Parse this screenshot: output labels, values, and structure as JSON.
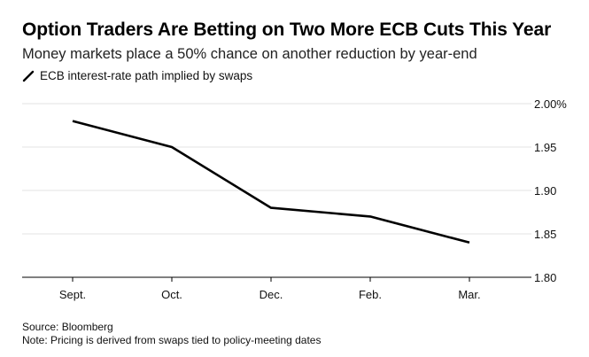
{
  "header": {
    "title": "Option Traders Are Betting on Two More ECB Cuts This Year",
    "subtitle": "Money markets place a 50% chance on another reduction by year-end"
  },
  "legend": {
    "label": "ECB interest-rate path implied by swaps"
  },
  "footer": {
    "source": "Source: Bloomberg",
    "note": "Note: Pricing is derived from swaps tied to policy-meeting dates"
  },
  "colors": {
    "line": "#000000",
    "grid": "#e3e3e3",
    "axis": "#000000"
  },
  "chart_data": {
    "type": "line",
    "title": "Option Traders Are Betting on Two More ECB Cuts This Year",
    "subtitle": "Money markets place a 50% chance on another reduction by year-end",
    "categories": [
      "Sept.",
      "Oct.",
      "Dec.",
      "Feb.",
      "Mar."
    ],
    "series": [
      {
        "name": "ECB interest-rate path implied by swaps",
        "values": [
          1.98,
          1.95,
          1.88,
          1.87,
          1.84
        ]
      }
    ],
    "ylim": [
      1.8,
      2.0
    ],
    "yticks": [
      2.0,
      1.95,
      1.9,
      1.85,
      1.8
    ],
    "ytick_labels": [
      "2.00%",
      "1.95",
      "1.90",
      "1.85",
      "1.80"
    ],
    "grid": true,
    "y_axis_side": "right",
    "legend_position": "top-left",
    "xlabel": "",
    "ylabel": ""
  }
}
